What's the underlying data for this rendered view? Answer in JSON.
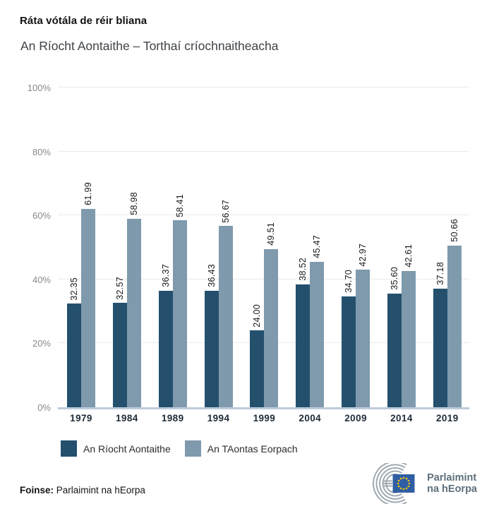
{
  "header": {
    "title": "Ráta vótála de réir bliana",
    "subtitle": "An Ríocht Aontaithe – Torthaí críochnaitheacha"
  },
  "chart_data": {
    "type": "bar",
    "title": "Ráta vótála de réir bliana",
    "subtitle": "An Ríocht Aontaithe – Torthaí críochnaitheacha",
    "categories": [
      "1979",
      "1984",
      "1989",
      "1994",
      "1999",
      "2004",
      "2009",
      "2014",
      "2019"
    ],
    "series": [
      {
        "name": "An Ríocht Aontaithe",
        "color": "#24506e",
        "values": [
          32.35,
          32.57,
          36.37,
          36.43,
          24.0,
          38.52,
          34.7,
          35.6,
          37.18
        ]
      },
      {
        "name": "An TAontas Eorpach",
        "color": "#7f9aad",
        "values": [
          61.99,
          58.98,
          58.41,
          56.67,
          49.51,
          45.47,
          42.97,
          42.61,
          50.66
        ]
      }
    ],
    "ylim": [
      0,
      100
    ],
    "ticks": [
      0,
      20,
      40,
      60,
      80,
      100
    ],
    "tick_labels": [
      "0%",
      "20%",
      "40%",
      "60%",
      "80%",
      "100%"
    ],
    "value_label_decimals": 2,
    "grid": true,
    "legend_position": "bottom",
    "bar_value_labels_rotated": true
  },
  "footer": {
    "source_label": "Foinse:",
    "source_text": "Parlaimint na hEorpa"
  },
  "logo": {
    "line1": "Parlaimint",
    "line2": "na hEorpa"
  },
  "colors": {
    "series_uk": "#24506e",
    "series_eu": "#7f9aad",
    "gridline": "#e9ebed",
    "axis_baseline": "#bccbdb",
    "y_tick_text": "#87898c",
    "x_tick_text": "#1e2b38",
    "logo_text": "#5d6f7c",
    "logo_arcs": "#a0aab2",
    "flag_blue": "#2f5ea5",
    "flag_stars": "#f7c500"
  }
}
